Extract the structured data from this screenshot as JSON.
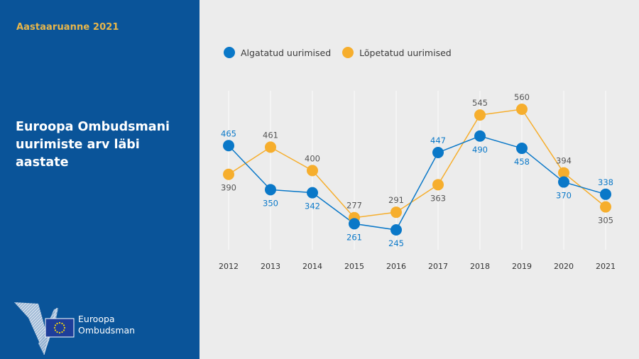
{
  "sidebar": {
    "report_label": "Aastaaruanne 2021",
    "title": "Euroopa Ombudsmani uurimiste arv läbi aastate",
    "logo": {
      "line1": "Euroopa",
      "line2": "Ombudsman",
      "icon": "european-ombudsman-logo-icon"
    }
  },
  "colors": {
    "sidebar_bg": "#0a5499",
    "accent_yellow": "#e8b64a",
    "series_blue": "#0a78c8",
    "series_orange": "#f6ae2d",
    "plot_bg": "#ececec"
  },
  "legend": [
    {
      "label": "Algatatud uurimised",
      "color": "#0a78c8"
    },
    {
      "label": "Lõpetatud uurimised",
      "color": "#f6ae2d"
    }
  ],
  "chart_data": {
    "type": "line",
    "title": "Euroopa Ombudsmani uurimiste arv läbi aastate",
    "xlabel": "",
    "ylabel": "",
    "categories": [
      "2012",
      "2013",
      "2014",
      "2015",
      "2016",
      "2017",
      "2018",
      "2019",
      "2020",
      "2021"
    ],
    "series": [
      {
        "name": "Algatatud uurimised",
        "color": "#0a78c8",
        "label_color": "#0a78c8",
        "values": [
          465,
          350,
          342,
          261,
          245,
          447,
          490,
          458,
          370,
          338
        ],
        "label_positions": [
          "above",
          "below",
          "below",
          "below",
          "below",
          "above",
          "below",
          "below",
          "below",
          "above"
        ]
      },
      {
        "name": "Lõpetatud uurimised",
        "color": "#f6ae2d",
        "label_color": "#555555",
        "values": [
          390,
          461,
          400,
          277,
          291,
          363,
          545,
          560,
          394,
          305
        ],
        "label_positions": [
          "below",
          "above",
          "above",
          "above",
          "above",
          "below",
          "above",
          "above",
          "above",
          "below"
        ]
      }
    ],
    "ylim": [
      200,
      600
    ],
    "grid": "vertical",
    "legend_position": "top-left"
  }
}
